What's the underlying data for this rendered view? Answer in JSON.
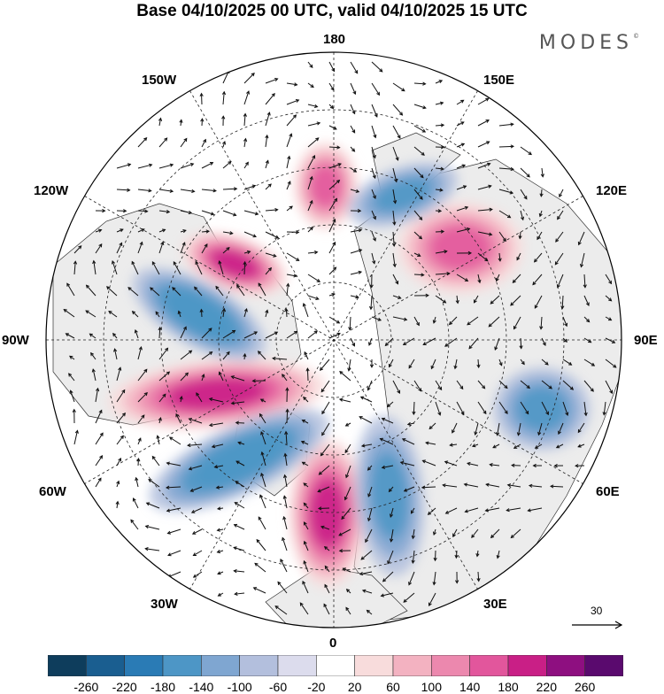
{
  "header": {
    "title": "Base 04/10/2025 00 UTC, valid 04/10/2025 15 UTC",
    "logo": "MODES",
    "logo_mark": "©"
  },
  "map": {
    "projection": "north-polar-stereographic",
    "longitude_labels": {
      "lon_180": "180",
      "lon_150E": "150E",
      "lon_120E": "120E",
      "lon_90E": "90E",
      "lon_60E": "60E",
      "lon_30E": "30E",
      "lon_0": "0",
      "lon_30W": "30W",
      "lon_60W": "60W",
      "lon_90W": "90W",
      "lon_120W": "120W",
      "lon_150W": "150W"
    },
    "reference_vector": {
      "value": "30"
    },
    "anomaly_centers": [
      {
        "name": "positive-anomaly-north-atlantic",
        "sign": "positive",
        "value": 220
      },
      {
        "name": "positive-anomaly-north-america",
        "sign": "positive",
        "value": 200
      },
      {
        "name": "positive-anomaly-alaska-canada",
        "sign": "positive",
        "value": 200
      },
      {
        "name": "positive-anomaly-bering",
        "sign": "positive",
        "value": 160
      },
      {
        "name": "positive-anomaly-siberia",
        "sign": "positive",
        "value": 180
      },
      {
        "name": "negative-anomaly-canada",
        "sign": "negative",
        "value": -160
      },
      {
        "name": "negative-anomaly-atlantic",
        "sign": "negative",
        "value": -160
      },
      {
        "name": "negative-anomaly-europe",
        "sign": "negative",
        "value": -140
      },
      {
        "name": "negative-anomaly-central-asia",
        "sign": "negative",
        "value": -140
      },
      {
        "name": "negative-anomaly-east-siberia",
        "sign": "negative",
        "value": -140
      }
    ]
  },
  "colorbar": {
    "levels": [
      "-260",
      "-220",
      "-180",
      "-140",
      "-100",
      "-60",
      "-20",
      "20",
      "60",
      "100",
      "140",
      "180",
      "220",
      "260"
    ],
    "colors": [
      "#0e3d5c",
      "#1a5e90",
      "#2a7bb5",
      "#4d96c6",
      "#7fa6d1",
      "#b3bfdd",
      "#dcdced",
      "#ffffff",
      "#f8dcdc",
      "#f3b2c1",
      "#ec88ae",
      "#e2569c",
      "#c91f86",
      "#8e0f80",
      "#5a0a6e"
    ]
  }
}
